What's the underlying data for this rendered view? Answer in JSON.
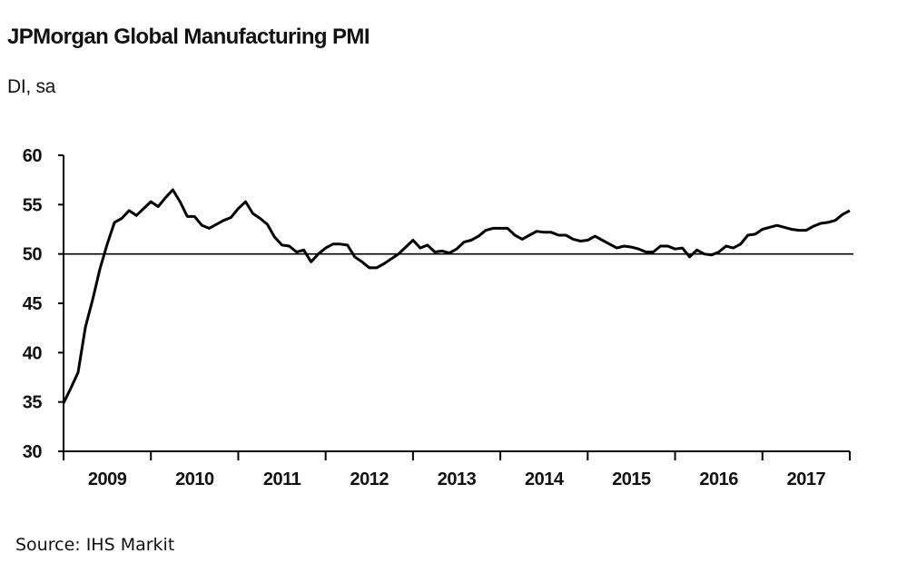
{
  "chart_data": {
    "type": "line",
    "title": "JPMorgan Global Manufacturing PMI",
    "subtitle": "DI, sa",
    "source": "Source: IHS Markit",
    "xlabel": "",
    "ylabel": "",
    "ylim": [
      30,
      60
    ],
    "y_ticks": [
      "30",
      "35",
      "40",
      "45",
      "50",
      "55",
      "60"
    ],
    "x_tick_labels": [
      "2009",
      "2010",
      "2011",
      "2012",
      "2013",
      "2014",
      "2015",
      "2016",
      "2017"
    ],
    "frequency": "monthly",
    "reference_line": 50,
    "grid": false,
    "line_color": "#000000",
    "series": [
      {
        "values": [
          34.9,
          36.4,
          38.0,
          42.6,
          45.4,
          48.5,
          51.0,
          53.2,
          53.6,
          54.4,
          53.9,
          54.6,
          55.3,
          54.8,
          55.7,
          56.5,
          55.3,
          53.8,
          53.8,
          52.9,
          52.6,
          53.0,
          53.4,
          53.7,
          54.6,
          55.3,
          54.1,
          53.6,
          53.0,
          51.7,
          50.9,
          50.8,
          50.2,
          50.4,
          49.2,
          50.0,
          50.6,
          51.0,
          51.0,
          50.9,
          49.7,
          49.2,
          48.6,
          48.6,
          49.0,
          49.5,
          50.0,
          50.7,
          51.4,
          50.6,
          50.9,
          50.2,
          50.3,
          50.1,
          50.5,
          51.2,
          51.4,
          51.8,
          52.4,
          52.6,
          52.6,
          52.6,
          51.9,
          51.5,
          51.9,
          52.3,
          52.2,
          52.2,
          51.9,
          51.9,
          51.5,
          51.3,
          51.4,
          51.8,
          51.4,
          51.0,
          50.6,
          50.8,
          50.7,
          50.5,
          50.2,
          50.2,
          50.8,
          50.8,
          50.5,
          50.6,
          49.7,
          50.4,
          50.0,
          49.9,
          50.2,
          50.8,
          50.6,
          51.0,
          51.9,
          52.0,
          52.5,
          52.7,
          52.9,
          52.7,
          52.5,
          52.4,
          52.4,
          52.8,
          53.1,
          53.2,
          53.4,
          54.0,
          54.4
        ]
      }
    ]
  }
}
